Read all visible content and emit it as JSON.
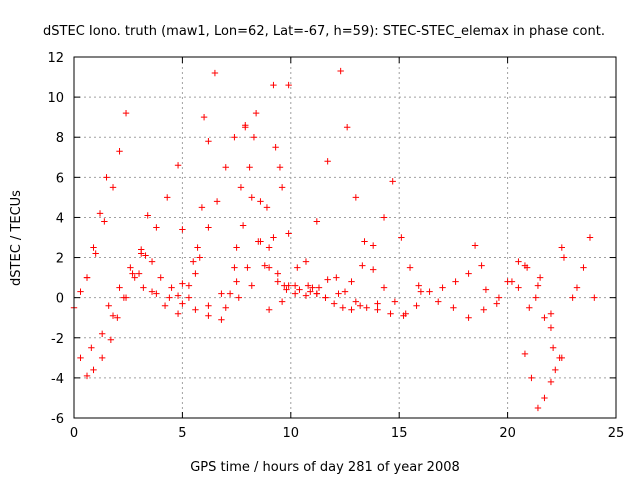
{
  "chart_data": {
    "type": "scatter",
    "title": "dSTEC Iono. truth (maw1, Lon=62, Lat=-67, h=59): STEC-STEC_elemax in phase cont.",
    "xlabel": "GPS time / hours of day 281 of year 2008",
    "ylabel": "dSTEC  / TECUs",
    "xlim": [
      0,
      25
    ],
    "ylim": [
      -6,
      12
    ],
    "x_ticks": [
      "0",
      "5",
      "10",
      "15",
      "20",
      "25"
    ],
    "y_ticks": [
      "-6",
      "-4",
      "-2",
      "0",
      "2",
      "4",
      "6",
      "8",
      "10",
      "12"
    ],
    "grid": true,
    "marker": "+",
    "color": "#ff0000",
    "series": [
      {
        "x": [
          0.0,
          0.3,
          0.6,
          1.0,
          1.4,
          1.8,
          2.1,
          2.4
        ],
        "y": [
          -0.5,
          0.3,
          1.0,
          2.2,
          3.8,
          5.5,
          7.3,
          9.2
        ]
      },
      {
        "x": [
          0.6,
          0.9,
          1.2,
          1.5
        ],
        "y": [
          1.0,
          2.5,
          4.2,
          6.0
        ]
      },
      {
        "x": [
          0.6,
          0.9,
          1.3,
          1.7,
          2.0,
          2.4,
          2.7,
          3.1,
          3.4
        ],
        "y": [
          -3.9,
          -3.6,
          -3.0,
          -2.1,
          -1.0,
          0.0,
          1.2,
          2.2,
          4.1
        ]
      },
      {
        "x": [
          0.3,
          0.8,
          1.3,
          1.8,
          2.3,
          2.8,
          3.3,
          3.8,
          4.3,
          4.8
        ],
        "y": [
          -3.0,
          -2.5,
          -1.8,
          -0.9,
          0.0,
          1.0,
          2.1,
          3.5,
          5.0,
          6.6
        ]
      },
      {
        "x": [
          1.6,
          2.1,
          2.6,
          3.1,
          3.6,
          4.0,
          4.5,
          5.0,
          5.5,
          5.9,
          6.2,
          6.5
        ],
        "y": [
          -0.4,
          0.5,
          1.5,
          2.4,
          1.8,
          1.0,
          0.5,
          0.7,
          1.8,
          4.5,
          7.8,
          11.2
        ]
      },
      {
        "x": [
          3.0,
          3.6,
          4.2,
          4.8,
          5.3,
          5.7,
          6.0
        ],
        "y": [
          1.2,
          0.3,
          -0.4,
          -0.8,
          0.0,
          2.5,
          9.0
        ]
      },
      {
        "x": [
          3.2,
          3.8,
          4.4,
          5.0,
          5.6,
          6.2,
          6.8,
          7.4,
          7.8,
          8.1,
          8.4
        ],
        "y": [
          0.5,
          0.2,
          0.0,
          -0.3,
          -0.6,
          -0.9,
          0.2,
          1.5,
          3.6,
          6.5,
          9.2
        ]
      },
      {
        "x": [
          5.0,
          5.6,
          6.2,
          6.8,
          7.2,
          7.5,
          7.7,
          7.9
        ],
        "y": [
          3.4,
          1.2,
          -0.4,
          -1.1,
          0.2,
          2.5,
          5.5,
          8.6
        ]
      },
      {
        "x": [
          4.8,
          5.3,
          5.8,
          6.2,
          6.6,
          7.0,
          7.4
        ],
        "y": [
          0.1,
          0.6,
          2.0,
          3.5,
          4.8,
          6.5,
          8.0
        ]
      },
      {
        "x": [
          7.9,
          8.2,
          8.6,
          9.0,
          9.4,
          9.8,
          10.2,
          10.7,
          11.2
        ],
        "y": [
          8.5,
          5.0,
          2.8,
          1.5,
          0.8,
          0.4,
          0.2,
          0.1,
          0.2
        ]
      },
      {
        "x": [
          8.3,
          8.6,
          9.0,
          9.4,
          9.7
        ],
        "y": [
          8.0,
          4.8,
          2.5,
          1.2,
          0.6
        ]
      },
      {
        "x": [
          7.0,
          7.6,
          8.2,
          8.8,
          9.2,
          9.6,
          9.9
        ],
        "y": [
          -0.5,
          0.0,
          0.6,
          1.6,
          3.0,
          5.5,
          10.6
        ]
      },
      {
        "x": [
          7.5,
          8.0,
          8.5,
          8.9,
          9.3
        ],
        "y": [
          0.8,
          1.5,
          2.8,
          4.5,
          7.5
        ]
      },
      {
        "x": [
          9.2,
          9.5,
          9.9,
          10.3,
          10.8,
          11.2,
          11.6,
          12.0,
          12.4,
          12.8,
          13.2
        ],
        "y": [
          10.6,
          6.5,
          3.2,
          1.5,
          0.6,
          0.2,
          0.0,
          -0.3,
          -0.5,
          -0.6,
          -0.4
        ]
      },
      {
        "x": [
          9.9,
          10.4,
          10.9,
          11.3,
          11.7,
          12.1,
          12.5,
          13.0,
          13.5,
          14.0
        ],
        "y": [
          0.6,
          0.4,
          0.3,
          0.5,
          0.9,
          1.0,
          0.3,
          -0.2,
          -0.5,
          -0.6
        ]
      },
      {
        "x": [
          9.0,
          9.6,
          10.2,
          10.7,
          11.2,
          11.7
        ],
        "y": [
          -0.6,
          -0.2,
          0.6,
          1.8,
          3.8,
          6.8
        ]
      },
      {
        "x": [
          12.3,
          12.6,
          13.0,
          13.4,
          13.8,
          14.3,
          14.8,
          15.3
        ],
        "y": [
          11.3,
          8.5,
          5.0,
          2.8,
          1.4,
          0.5,
          -0.2,
          -0.8
        ]
      },
      {
        "x": [
          11.0,
          11.6,
          12.2,
          12.8,
          13.3,
          13.8,
          14.3,
          14.7,
          15.1,
          15.5,
          15.9
        ],
        "y": [
          0.5,
          0.0,
          0.2,
          0.8,
          1.6,
          2.6,
          4.0,
          5.8,
          3.0,
          1.5,
          0.6
        ]
      },
      {
        "x": [
          14.0,
          14.6,
          15.2,
          15.8,
          16.4,
          17.0,
          17.6,
          18.2,
          18.8
        ],
        "y": [
          -0.3,
          -0.8,
          -0.9,
          -0.4,
          0.3,
          0.5,
          0.8,
          1.2,
          1.6
        ]
      },
      {
        "x": [
          16.0,
          16.8,
          17.5,
          18.2,
          18.9,
          19.6,
          20.2,
          20.8,
          21.4,
          22.0,
          22.6,
          23.2,
          23.8
        ],
        "y": [
          0.3,
          -0.2,
          -0.5,
          -1.0,
          -0.6,
          0.0,
          0.8,
          1.6,
          0.6,
          -0.8,
          2.0,
          0.5,
          3.0
        ]
      },
      {
        "x": [
          18.5,
          19.0,
          19.5,
          20.0,
          20.5,
          20.9,
          21.3,
          21.7,
          22.1,
          22.5
        ],
        "y": [
          2.6,
          0.4,
          -0.3,
          0.8,
          1.8,
          1.5,
          0.0,
          -1.0,
          -2.5,
          -3.0
        ]
      },
      {
        "x": [
          20.8,
          21.1,
          21.4,
          21.7,
          22.0,
          22.2,
          22.4
        ],
        "y": [
          -2.8,
          -4.0,
          -5.5,
          -5.0,
          -4.2,
          -3.6,
          -3.0
        ]
      },
      {
        "x": [
          20.5,
          21.0,
          21.5,
          22.0,
          22.5,
          23.0,
          23.5,
          24.0
        ],
        "y": [
          0.5,
          -0.5,
          1.0,
          -1.5,
          2.5,
          0.0,
          1.5,
          0.0
        ]
      }
    ]
  }
}
